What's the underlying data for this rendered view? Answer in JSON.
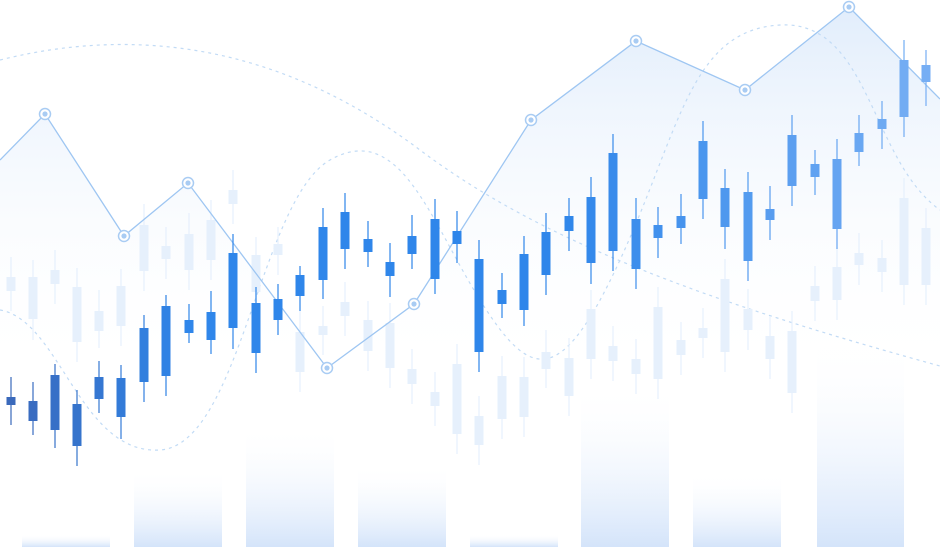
{
  "colors": {
    "background": "#ffffff",
    "line": "#9ec6f2",
    "area_top": "#dceafb",
    "marker": "#a9ccf3",
    "candle_dark": "#3b67b8",
    "candle_mid": "#2f86ea",
    "candle_light": "#79b0f4",
    "ghost_candle": "#e6f0fc",
    "volume": "#d4e4fa",
    "dotted_curve": "#c2dbf5"
  },
  "chart_data": {
    "type": "candlestick",
    "title": "",
    "xlabel": "",
    "ylabel": "",
    "axes_visible": false,
    "grid": false,
    "legend": "none",
    "ylim": [
      0,
      547
    ],
    "candles": [
      {
        "x": 11,
        "open": 142,
        "close": 150,
        "high": 170,
        "low": 122
      },
      {
        "x": 33,
        "open": 146,
        "close": 126,
        "high": 165,
        "low": 112
      },
      {
        "x": 55,
        "open": 117,
        "close": 172,
        "high": 183,
        "low": 99
      },
      {
        "x": 77,
        "open": 101,
        "close": 143,
        "high": 157,
        "low": 81
      },
      {
        "x": 99,
        "open": 148,
        "close": 170,
        "high": 186,
        "low": 134
      },
      {
        "x": 121,
        "open": 130,
        "close": 169,
        "high": 182,
        "low": 108
      },
      {
        "x": 144,
        "open": 165,
        "close": 219,
        "high": 232,
        "low": 145
      },
      {
        "x": 166,
        "open": 171,
        "close": 241,
        "high": 252,
        "low": 151
      },
      {
        "x": 189,
        "open": 214,
        "close": 227,
        "high": 243,
        "low": 204
      },
      {
        "x": 211,
        "open": 207,
        "close": 235,
        "high": 256,
        "low": 193
      },
      {
        "x": 233,
        "open": 219,
        "close": 294,
        "high": 313,
        "low": 198
      },
      {
        "x": 256,
        "open": 194,
        "close": 244,
        "high": 260,
        "low": 174
      },
      {
        "x": 278,
        "open": 227,
        "close": 248,
        "high": 263,
        "low": 212
      },
      {
        "x": 300,
        "open": 251,
        "close": 272,
        "high": 281,
        "low": 236
      },
      {
        "x": 323,
        "open": 267,
        "close": 320,
        "high": 339,
        "low": 248
      },
      {
        "x": 345,
        "open": 298,
        "close": 335,
        "high": 354,
        "low": 278
      },
      {
        "x": 368,
        "open": 295,
        "close": 308,
        "high": 326,
        "low": 280
      },
      {
        "x": 390,
        "open": 271,
        "close": 285,
        "high": 304,
        "low": 250
      },
      {
        "x": 412,
        "open": 293,
        "close": 311,
        "high": 332,
        "low": 278
      },
      {
        "x": 435,
        "open": 268,
        "close": 328,
        "high": 348,
        "low": 253
      },
      {
        "x": 457,
        "open": 303,
        "close": 316,
        "high": 336,
        "low": 284
      },
      {
        "x": 479,
        "open": 288,
        "close": 195,
        "high": 307,
        "low": 175
      },
      {
        "x": 502,
        "open": 243,
        "close": 257,
        "high": 274,
        "low": 229
      },
      {
        "x": 524,
        "open": 237,
        "close": 293,
        "high": 311,
        "low": 221
      },
      {
        "x": 546,
        "open": 272,
        "close": 315,
        "high": 334,
        "low": 252
      },
      {
        "x": 569,
        "open": 316,
        "close": 331,
        "high": 349,
        "low": 296
      },
      {
        "x": 591,
        "open": 284,
        "close": 350,
        "high": 370,
        "low": 263
      },
      {
        "x": 613,
        "open": 296,
        "close": 394,
        "high": 413,
        "low": 276
      },
      {
        "x": 636,
        "open": 328,
        "close": 278,
        "high": 349,
        "low": 258
      },
      {
        "x": 658,
        "open": 309,
        "close": 322,
        "high": 340,
        "low": 289
      },
      {
        "x": 681,
        "open": 319,
        "close": 331,
        "high": 353,
        "low": 303
      },
      {
        "x": 703,
        "open": 348,
        "close": 406,
        "high": 426,
        "low": 328
      },
      {
        "x": 725,
        "open": 320,
        "close": 359,
        "high": 378,
        "low": 298
      },
      {
        "x": 748,
        "open": 286,
        "close": 355,
        "high": 375,
        "low": 266
      },
      {
        "x": 770,
        "open": 327,
        "close": 338,
        "high": 361,
        "low": 307
      },
      {
        "x": 792,
        "open": 361,
        "close": 412,
        "high": 432,
        "low": 341
      },
      {
        "x": 815,
        "open": 370,
        "close": 383,
        "high": 397,
        "low": 352
      },
      {
        "x": 837,
        "open": 318,
        "close": 388,
        "high": 408,
        "low": 298
      },
      {
        "x": 859,
        "open": 395,
        "close": 414,
        "high": 432,
        "low": 381
      },
      {
        "x": 882,
        "open": 418,
        "close": 428,
        "high": 446,
        "low": 398
      },
      {
        "x": 904,
        "open": 430,
        "close": 487,
        "high": 507,
        "low": 410
      },
      {
        "x": 926,
        "open": 465,
        "close": 482,
        "high": 497,
        "low": 441
      }
    ],
    "ghost_candles": [
      {
        "x": 11,
        "open": 256,
        "close": 270,
        "high": 290,
        "low": 236
      },
      {
        "x": 33,
        "open": 228,
        "close": 270,
        "high": 287,
        "low": 207
      },
      {
        "x": 55,
        "open": 263,
        "close": 277,
        "high": 297,
        "low": 243
      },
      {
        "x": 77,
        "open": 205,
        "close": 260,
        "high": 279,
        "low": 185
      },
      {
        "x": 99,
        "open": 216,
        "close": 236,
        "high": 257,
        "low": 199
      },
      {
        "x": 121,
        "open": 221,
        "close": 261,
        "high": 278,
        "low": 201
      },
      {
        "x": 144,
        "open": 276,
        "close": 322,
        "high": 343,
        "low": 256
      },
      {
        "x": 166,
        "open": 288,
        "close": 301,
        "high": 320,
        "low": 268
      },
      {
        "x": 189,
        "open": 277,
        "close": 313,
        "high": 334,
        "low": 257
      },
      {
        "x": 211,
        "open": 287,
        "close": 327,
        "high": 347,
        "low": 267
      },
      {
        "x": 233,
        "open": 343,
        "close": 357,
        "high": 377,
        "low": 323
      },
      {
        "x": 256,
        "open": 255,
        "close": 292,
        "high": 310,
        "low": 236
      },
      {
        "x": 278,
        "open": 292,
        "close": 303,
        "high": 320,
        "low": 272
      },
      {
        "x": 300,
        "open": 175,
        "close": 215,
        "high": 236,
        "low": 155
      },
      {
        "x": 323,
        "open": 212,
        "close": 221,
        "high": 241,
        "low": 192
      },
      {
        "x": 345,
        "open": 231,
        "close": 245,
        "high": 265,
        "low": 211
      },
      {
        "x": 368,
        "open": 196,
        "close": 227,
        "high": 246,
        "low": 176
      },
      {
        "x": 390,
        "open": 179,
        "close": 224,
        "high": 244,
        "low": 159
      },
      {
        "x": 412,
        "open": 163,
        "close": 178,
        "high": 198,
        "low": 143
      },
      {
        "x": 435,
        "open": 141,
        "close": 155,
        "high": 175,
        "low": 121
      },
      {
        "x": 457,
        "open": 113,
        "close": 183,
        "high": 203,
        "low": 93
      },
      {
        "x": 479,
        "open": 102,
        "close": 131,
        "high": 151,
        "low": 82
      },
      {
        "x": 502,
        "open": 128,
        "close": 171,
        "high": 191,
        "low": 108
      },
      {
        "x": 524,
        "open": 130,
        "close": 170,
        "high": 190,
        "low": 110
      },
      {
        "x": 546,
        "open": 178,
        "close": 195,
        "high": 217,
        "low": 159
      },
      {
        "x": 569,
        "open": 151,
        "close": 189,
        "high": 209,
        "low": 131
      },
      {
        "x": 591,
        "open": 188,
        "close": 238,
        "high": 257,
        "low": 168
      },
      {
        "x": 613,
        "open": 186,
        "close": 201,
        "high": 221,
        "low": 166
      },
      {
        "x": 636,
        "open": 173,
        "close": 188,
        "high": 208,
        "low": 153
      },
      {
        "x": 658,
        "open": 168,
        "close": 240,
        "high": 260,
        "low": 148
      },
      {
        "x": 681,
        "open": 192,
        "close": 207,
        "high": 225,
        "low": 172
      },
      {
        "x": 703,
        "open": 209,
        "close": 219,
        "high": 239,
        "low": 189
      },
      {
        "x": 725,
        "open": 195,
        "close": 268,
        "high": 288,
        "low": 175
      },
      {
        "x": 748,
        "open": 217,
        "close": 238,
        "high": 258,
        "low": 197
      },
      {
        "x": 770,
        "open": 188,
        "close": 211,
        "high": 231,
        "low": 168
      },
      {
        "x": 792,
        "open": 154,
        "close": 216,
        "high": 236,
        "low": 134
      },
      {
        "x": 815,
        "open": 246,
        "close": 261,
        "high": 281,
        "low": 226
      },
      {
        "x": 837,
        "open": 247,
        "close": 280,
        "high": 300,
        "low": 227
      },
      {
        "x": 859,
        "open": 282,
        "close": 294,
        "high": 314,
        "low": 262
      },
      {
        "x": 882,
        "open": 275,
        "close": 289,
        "high": 307,
        "low": 255
      },
      {
        "x": 904,
        "open": 262,
        "close": 349,
        "high": 369,
        "low": 242
      },
      {
        "x": 926,
        "open": 262,
        "close": 319,
        "high": 339,
        "low": 242
      }
    ],
    "line_series": {
      "points": [
        {
          "x": 0,
          "y": 387
        },
        {
          "x": 45,
          "y": 433
        },
        {
          "x": 124,
          "y": 311
        },
        {
          "x": 188,
          "y": 364
        },
        {
          "x": 327,
          "y": 179
        },
        {
          "x": 414,
          "y": 243
        },
        {
          "x": 531,
          "y": 427
        },
        {
          "x": 636,
          "y": 506
        },
        {
          "x": 745,
          "y": 457
        },
        {
          "x": 849,
          "y": 540
        },
        {
          "x": 940,
          "y": 448
        }
      ],
      "markers": [
        45,
        124,
        188,
        327,
        414,
        531,
        636,
        745,
        849
      ]
    },
    "volume_bars": [
      {
        "x0": 22,
        "x1": 110,
        "value": 12
      },
      {
        "x0": 134,
        "x1": 222,
        "value": 75
      },
      {
        "x0": 246,
        "x1": 334,
        "value": 117
      },
      {
        "x0": 358,
        "x1": 446,
        "value": 80
      },
      {
        "x0": 470,
        "x1": 558,
        "value": 12
      },
      {
        "x0": 581,
        "x1": 669,
        "value": 157
      },
      {
        "x0": 693,
        "x1": 781,
        "value": 72
      },
      {
        "x0": 817,
        "x1": 904,
        "value": 200
      }
    ]
  }
}
